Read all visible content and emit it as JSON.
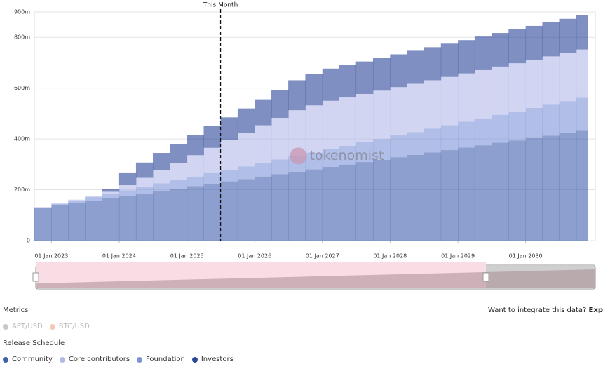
{
  "chart_data": {
    "type": "stacked-step-area",
    "annotation": {
      "label": "This Month",
      "x": "2025-07-01"
    },
    "watermark": "tokenomist",
    "x": [
      "2022-10-01",
      "2023-01-01",
      "2023-04-01",
      "2023-07-01",
      "2023-10-01",
      "2024-01-01",
      "2024-04-01",
      "2024-07-01",
      "2024-10-01",
      "2025-01-01",
      "2025-04-01",
      "2025-07-01",
      "2025-10-01",
      "2026-01-01",
      "2026-04-01",
      "2026-07-01",
      "2026-10-01",
      "2027-01-01",
      "2027-04-01",
      "2027-07-01",
      "2027-10-01",
      "2028-01-01",
      "2028-04-01",
      "2028-07-01",
      "2028-10-01",
      "2029-01-01",
      "2029-04-01",
      "2029-07-01",
      "2029-10-01",
      "2030-01-01",
      "2030-04-01",
      "2030-07-01",
      "2030-10-01"
    ],
    "xlim": [
      "2022-10-01",
      "2030-12-01"
    ],
    "xticks": [
      {
        "value": "2023-01-01",
        "label": "01 Jan 2023"
      },
      {
        "value": "2024-01-01",
        "label": "01 Jan 2024"
      },
      {
        "value": "2025-01-01",
        "label": "01 Jan 2025"
      },
      {
        "value": "2026-01-01",
        "label": "01 Jan 2026"
      },
      {
        "value": "2027-01-01",
        "label": "01 Jan 2027"
      },
      {
        "value": "2028-01-01",
        "label": "01 Jan 2028"
      },
      {
        "value": "2029-01-01",
        "label": "01 Jan 2029"
      },
      {
        "value": "2030-01-01",
        "label": "01 Jan 2030"
      }
    ],
    "ylim": [
      0,
      900
    ],
    "yticks": [
      0,
      {
        "value": 200,
        "label": "200m"
      },
      {
        "value": 400,
        "label": "400m"
      },
      {
        "value": 600,
        "label": "600m"
      },
      {
        "value": 800,
        "label": "800m"
      },
      {
        "value": 900,
        "label": "900m"
      }
    ],
    "grid": true,
    "series": [
      {
        "name": "Community",
        "color": "#3f5fae",
        "values": [
          128,
          138,
          147,
          157,
          166,
          176,
          185,
          195,
          204,
          214,
          223,
          233,
          242,
          252,
          261,
          271,
          280,
          290,
          299,
          309,
          318,
          328,
          337,
          347,
          356,
          366,
          375,
          385,
          394,
          404,
          413,
          423,
          432
        ]
      },
      {
        "name": "Foundation",
        "color": "#7b92d8",
        "values": [
          2,
          6,
          10,
          14,
          18,
          22,
          26,
          30,
          34,
          38,
          42,
          46,
          50,
          54,
          58,
          62,
          66,
          70,
          74,
          78,
          82,
          86,
          90,
          94,
          98,
          102,
          106,
          110,
          114,
          118,
          122,
          126,
          130
        ]
      },
      {
        "name": "Core contributors",
        "color": "#b4b9e9",
        "values": [
          2,
          3,
          4,
          5,
          8,
          20,
          36,
          52,
          68,
          84,
          100,
          116,
          132,
          148,
          164,
          180,
          186,
          190,
          190,
          190,
          190,
          190,
          190,
          190,
          190,
          190,
          190,
          190,
          190,
          190,
          190,
          190,
          190
        ]
      },
      {
        "name": "Investors",
        "color": "#2a4599",
        "values": [
          0,
          0,
          0,
          0,
          10,
          50,
          60,
          68,
          75,
          80,
          85,
          90,
          96,
          102,
          110,
          118,
          124,
          127,
          128,
          128,
          129,
          129,
          130,
          130,
          131,
          131,
          132,
          132,
          133,
          133,
          134,
          134,
          135
        ]
      }
    ],
    "legend_order": [
      0,
      2,
      1,
      3
    ],
    "legend_title": "Release Schedule",
    "metrics": {
      "title": "Metrics",
      "items": [
        {
          "name": "APT/USD",
          "color": "#c8c8c8"
        },
        {
          "name": "BTC/USD",
          "color": "#f6c9b6"
        }
      ]
    },
    "cta": {
      "text": "Want to integrate this data?",
      "link": "Exp"
    }
  }
}
